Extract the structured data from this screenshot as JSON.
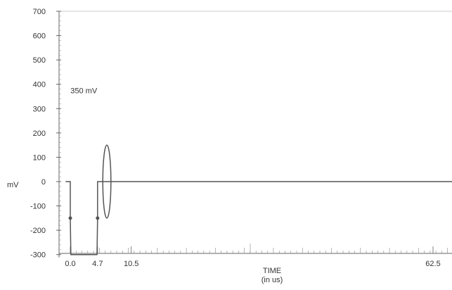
{
  "chart_data": {
    "type": "line",
    "title": "",
    "ylabel": "mV",
    "xlabel": "TIME",
    "xlabel_unit": "(in us)",
    "ylim": [
      -300,
      700
    ],
    "xlim": [
      -0.8,
      68
    ],
    "y_ticks": [
      700,
      600,
      500,
      400,
      300,
      200,
      100,
      0,
      -100,
      -200,
      -300
    ],
    "x_tick_labels": [
      {
        "value": 0.0,
        "label": "0.0"
      },
      {
        "value": 4.7,
        "label": "4.7"
      },
      {
        "value": 10.5,
        "label": "10.5"
      },
      {
        "value": 62.5,
        "label": "62.5"
      }
    ],
    "grid": false,
    "series": [
      {
        "x": [
          -0.8,
          0.0,
          0.0,
          0.1,
          4.6,
          4.7,
          4.7,
          68
        ],
        "y": [
          0,
          0,
          -150,
          -300,
          -300,
          -150,
          0,
          0
        ]
      }
    ],
    "markers": [
      {
        "x": 0.0,
        "y": -150
      },
      {
        "x": 4.7,
        "y": -150
      }
    ],
    "annotation": {
      "text": "350 mV",
      "x": 1.0,
      "y": 375
    },
    "ellipse": {
      "cx": 6.3,
      "cy": 0,
      "rx": 0.7,
      "ry": 150
    },
    "colors": {
      "line": "#555555",
      "axis": "#666666",
      "marker": "#555555"
    }
  }
}
